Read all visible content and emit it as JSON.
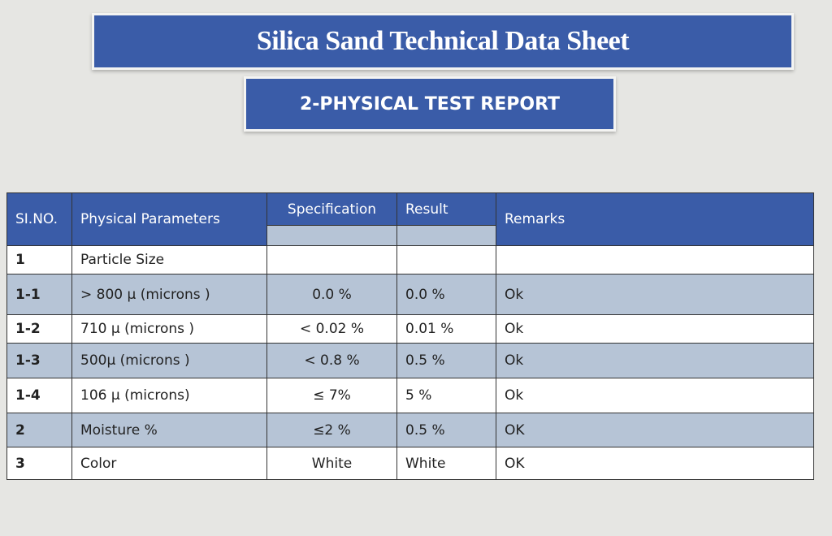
{
  "header": {
    "title": "Silica Sand Technical Data Sheet",
    "subtitle": "2-PHYSICAL TEST REPORT"
  },
  "table": {
    "columns": [
      "SI.NO.",
      "Physical Parameters",
      "Specification",
      "Result",
      "Remarks"
    ],
    "rows": [
      [
        "1",
        "Particle Size",
        null,
        null,
        null
      ],
      [
        "1-1",
        "> 800 µ (microns )",
        "0.0 %",
        "0.0 %",
        "Ok"
      ],
      [
        "1-2",
        "710 µ (microns )",
        "< 0.02 %",
        "0.01 %",
        "Ok"
      ],
      [
        "1-3",
        "500µ (microns )",
        "< 0.8 %",
        "0.5 %",
        "Ok"
      ],
      [
        "1-4",
        "106 µ (microns)",
        "≤ 7%",
        "5 %",
        "Ok"
      ],
      [
        "2",
        "Moisture %",
        "≤2 %",
        "0.5 %",
        "OK"
      ],
      [
        "3",
        "Color",
        "White",
        "White",
        "OK"
      ]
    ]
  }
}
